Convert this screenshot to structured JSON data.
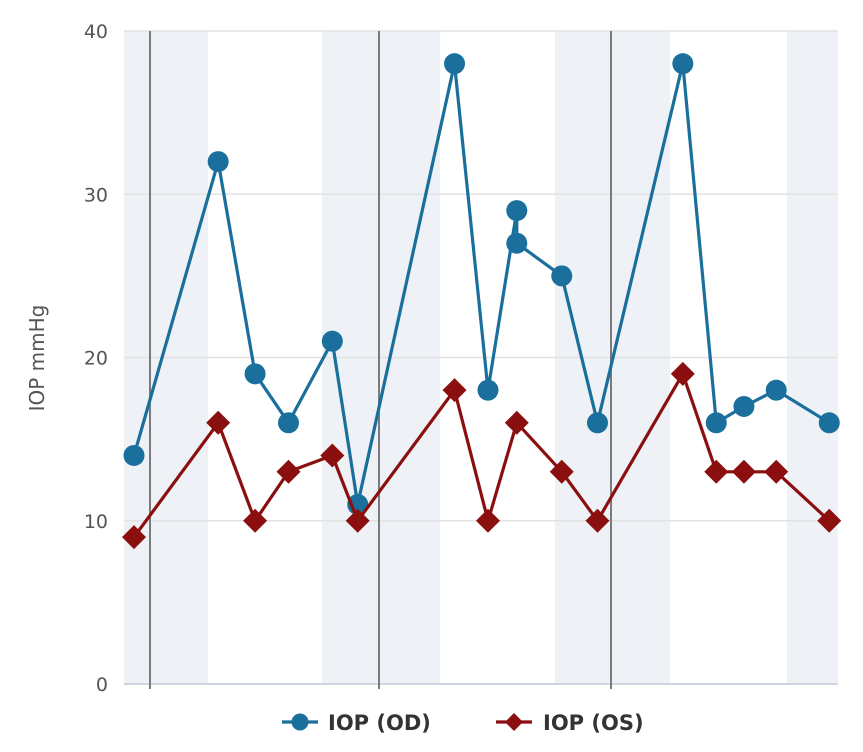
{
  "chart_data": {
    "type": "line",
    "ylabel": "IOP mmHg",
    "ylim": [
      0,
      40
    ],
    "yticks": [
      0,
      10,
      20,
      30,
      40
    ],
    "grid": true,
    "legend_position": "bottom-center",
    "series": [
      {
        "name": "IOP (OD)",
        "color": "#1a6f9c",
        "marker": "circle",
        "x": [
          0,
          0.73,
          1.05,
          1.34,
          1.72,
          1.94,
          2.78,
          3.07,
          3.32,
          3.32,
          3.71,
          4.02,
          4.76,
          5.05,
          5.29,
          5.57,
          6.03
        ],
        "values": [
          14,
          32,
          19,
          16,
          21,
          11,
          38,
          18,
          29,
          27,
          25,
          16,
          38,
          16,
          17,
          18,
          16
        ]
      },
      {
        "name": "IOP (OS)",
        "color": "#8b0f0f",
        "marker": "diamond",
        "x": [
          0,
          0.73,
          1.05,
          1.34,
          1.72,
          1.94,
          2.78,
          3.07,
          3.32,
          3.71,
          4.02,
          4.76,
          5.05,
          5.29,
          5.57,
          6.03
        ],
        "values": [
          9,
          16,
          10,
          13,
          14,
          10,
          18,
          10,
          16,
          13,
          10,
          19,
          13,
          13,
          13,
          10
        ]
      }
    ]
  }
}
